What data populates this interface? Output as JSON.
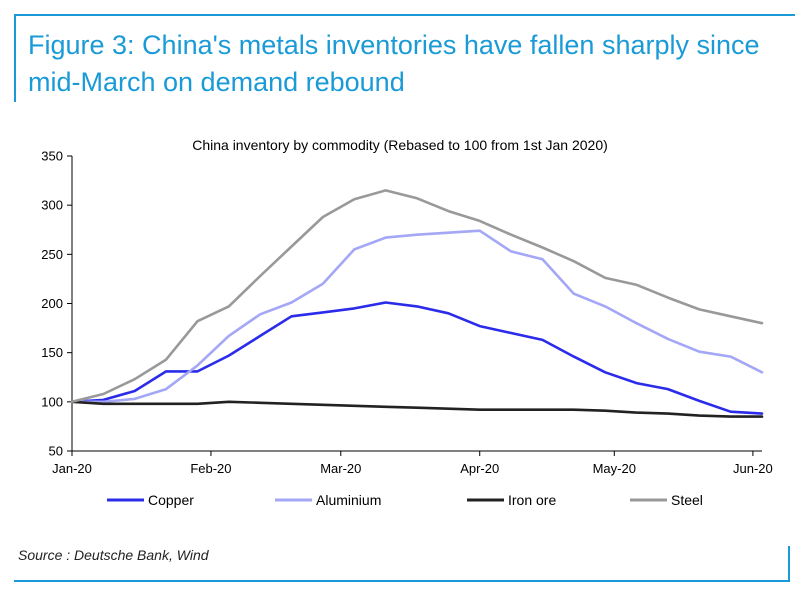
{
  "figure": {
    "title": "Figure 3: China's metals inventories have fallen sharply since mid-March on demand rebound",
    "source": "Source : Deutsche Bank, Wind",
    "accent_color": "#1a9bd7"
  },
  "chart_data": {
    "type": "line",
    "title": "China inventory by commodity (Rebased to 100 from 1st Jan 2020)",
    "xlabel": "",
    "ylabel": "",
    "ylim": [
      50,
      350
    ],
    "yticks": [
      50,
      100,
      150,
      200,
      250,
      300,
      350
    ],
    "x_tick_labels": [
      "Jan-20",
      "Feb-20",
      "Mar-20",
      "Apr-20",
      "May-20",
      "Jun-20"
    ],
    "x_tick_weeks": [
      0,
      4.43,
      8.57,
      13,
      17.29,
      21.71
    ],
    "x_range_weeks": [
      0,
      22
    ],
    "grid": false,
    "legend_position": "bottom",
    "series": [
      {
        "name": "Copper",
        "color": "#2b2bea",
        "x": [
          0,
          1,
          2,
          3,
          4,
          5,
          6,
          7,
          8,
          9,
          10,
          11,
          12,
          13,
          14,
          15,
          16,
          17,
          18,
          19,
          20,
          21,
          22
        ],
        "values": [
          100,
          102,
          111,
          131,
          131,
          147,
          167,
          187,
          191,
          195,
          201,
          197,
          190,
          177,
          170,
          163,
          146,
          130,
          119,
          113,
          101,
          90,
          88
        ]
      },
      {
        "name": "Aluminium",
        "color": "#a3a7f5",
        "x": [
          0,
          1,
          2,
          3,
          4,
          5,
          6,
          7,
          8,
          9,
          10,
          11,
          12,
          13,
          14,
          15,
          16,
          17,
          18,
          19,
          20,
          21,
          22
        ],
        "values": [
          100,
          100,
          103,
          113,
          137,
          167,
          189,
          201,
          220,
          255,
          267,
          270,
          272,
          274,
          253,
          245,
          210,
          197,
          180,
          164,
          151,
          146,
          130
        ]
      },
      {
        "name": "Iron ore",
        "color": "#222222",
        "x": [
          0,
          1,
          2,
          3,
          4,
          5,
          6,
          7,
          8,
          9,
          10,
          11,
          12,
          13,
          14,
          15,
          16,
          17,
          18,
          19,
          20,
          21,
          22
        ],
        "values": [
          100,
          98,
          98,
          98,
          98,
          100,
          99,
          98,
          97,
          96,
          95,
          94,
          93,
          92,
          92,
          92,
          92,
          91,
          89,
          88,
          86,
          85,
          85
        ]
      },
      {
        "name": "Steel",
        "color": "#999999",
        "x": [
          0,
          1,
          2,
          3,
          4,
          5,
          6,
          7,
          8,
          9,
          10,
          11,
          12,
          13,
          14,
          15,
          16,
          17,
          18,
          19,
          20,
          21,
          22
        ],
        "values": [
          100,
          108,
          123,
          143,
          182,
          197,
          228,
          258,
          288,
          306,
          315,
          307,
          294,
          284,
          270,
          257,
          243,
          226,
          219,
          206,
          194,
          187,
          180
        ]
      }
    ]
  }
}
